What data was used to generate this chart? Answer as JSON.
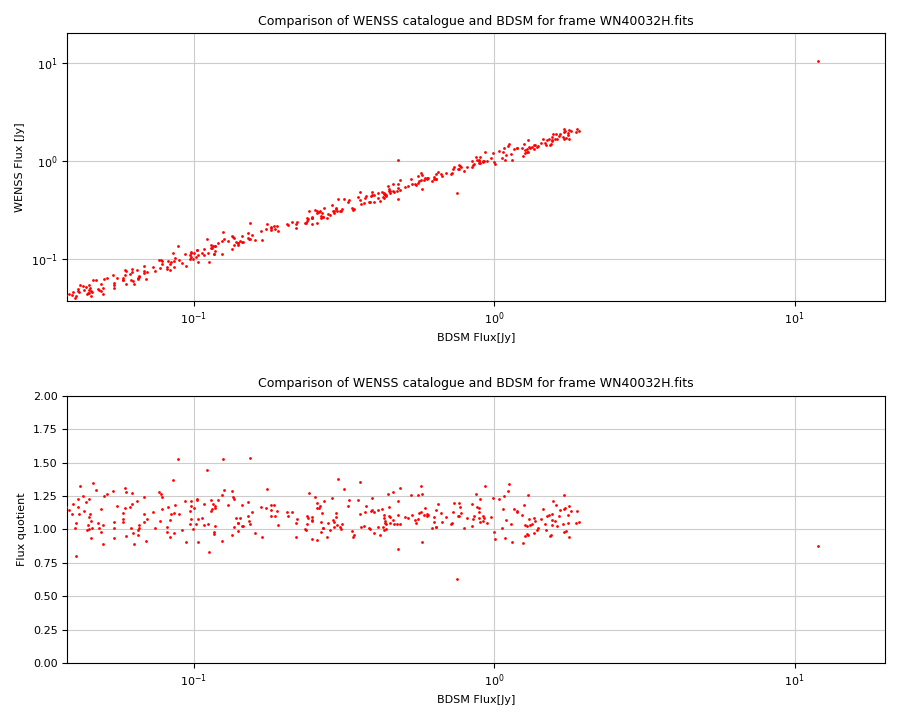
{
  "title": "Comparison of WENSS catalogue and BDSM for frame WN40032H.fits",
  "xlabel": "BDSM Flux[Jy]",
  "ylabel_top": "WENSS Flux [Jy]",
  "ylabel_bottom": "Flux quotient",
  "point_color": "#ff0000",
  "marker_size": 4,
  "title_fontsize": 9,
  "axes_fontsize": 8,
  "tick_fontsize": 8,
  "grid_color": "#cccccc",
  "background_color": "#ffffff",
  "seed": 42,
  "n_main": 380
}
